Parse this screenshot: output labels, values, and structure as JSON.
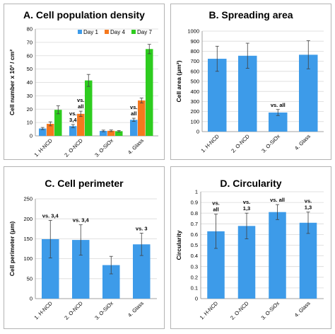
{
  "chart_data": [
    {
      "id": "A",
      "type": "bar",
      "title": "A. Cell population density",
      "ylabel": "Cell number x 10³ / cm²",
      "ylim": [
        0,
        80
      ],
      "yticks": [
        0,
        10,
        20,
        30,
        40,
        50,
        60,
        70,
        80
      ],
      "categories": [
        "1. H-NCD",
        "2. O-NCD",
        "3. O-SiOx",
        "4. Glass"
      ],
      "legend_position": "top-right",
      "series": [
        {
          "name": "Day 1",
          "color": "#3d9be9",
          "values": [
            5.5,
            7.3,
            3.7,
            12.0
          ],
          "errors": [
            0.8,
            1.2,
            0.6,
            1.2
          ]
        },
        {
          "name": "Day 4",
          "color": "#f5781e",
          "values": [
            9.0,
            16.5,
            3.8,
            26.5
          ],
          "errors": [
            1.5,
            2.0,
            0.6,
            1.8
          ]
        },
        {
          "name": "Day 7",
          "color": "#2ecc1f",
          "values": [
            19.5,
            41.5,
            3.5,
            65.0
          ],
          "errors": [
            3.0,
            4.5,
            0.5,
            3.5
          ]
        }
      ],
      "annotations": [
        {
          "category": 1,
          "series": 0,
          "lines": [
            "vs.",
            "3,4"
          ]
        },
        {
          "category": 1,
          "series": 1,
          "lines": [
            "vs.",
            "all"
          ]
        },
        {
          "category": 3,
          "series": 0,
          "lines": [
            "vs.",
            "all"
          ]
        }
      ]
    },
    {
      "id": "B",
      "type": "bar",
      "title": "B. Spreading area",
      "ylabel": "Cell area (μm²)",
      "ylim": [
        0,
        1000
      ],
      "yticks": [
        0,
        100,
        200,
        300,
        400,
        500,
        600,
        700,
        800,
        900,
        1000
      ],
      "categories": [
        "1. H-NCD",
        "2. O-NCD",
        "3. O-SiOx",
        "4. Glass"
      ],
      "series": [
        {
          "color": "#3d9be9",
          "values": [
            725,
            755,
            190,
            765
          ],
          "errors": [
            125,
            125,
            30,
            140
          ]
        }
      ],
      "annotations": [
        {
          "category": 2,
          "series": 0,
          "lines": [
            "vs. all"
          ]
        }
      ]
    },
    {
      "id": "C",
      "type": "bar",
      "title": "C. Cell perimeter",
      "ylabel": "Cell perimeter (μm)",
      "ylim": [
        0,
        250
      ],
      "yticks": [
        0,
        50,
        100,
        150,
        200,
        250
      ],
      "categories": [
        "1. H-NCD",
        "2. O-NCD",
        "3. O-SiOx",
        "4. Glass"
      ],
      "series": [
        {
          "color": "#3d9be9",
          "values": [
            149,
            147,
            84,
            136
          ],
          "errors": [
            47,
            38,
            22,
            28
          ]
        }
      ],
      "annotations": [
        {
          "category": 0,
          "series": 0,
          "lines": [
            "vs. 3,4"
          ]
        },
        {
          "category": 1,
          "series": 0,
          "lines": [
            "vs. 3,4"
          ]
        },
        {
          "category": 3,
          "series": 0,
          "lines": [
            "vs. 3"
          ]
        }
      ]
    },
    {
      "id": "D",
      "type": "bar",
      "title": "D. Circularity",
      "ylabel": "Circularity",
      "ylim": [
        0,
        1
      ],
      "yticks": [
        0,
        0.1,
        0.2,
        0.3,
        0.4,
        0.5,
        0.6,
        0.7,
        0.8,
        0.9,
        1
      ],
      "categories": [
        "1. H-NCD",
        "2. O-NCD",
        "3. O-SiOx",
        "4. Glass"
      ],
      "series": [
        {
          "color": "#3d9be9",
          "values": [
            0.63,
            0.68,
            0.81,
            0.71
          ],
          "errors": [
            0.16,
            0.12,
            0.07,
            0.1
          ]
        }
      ],
      "annotations": [
        {
          "category": 0,
          "series": 0,
          "lines": [
            "vs.",
            "all"
          ]
        },
        {
          "category": 1,
          "series": 0,
          "lines": [
            "vs.",
            "1,3"
          ]
        },
        {
          "category": 2,
          "series": 0,
          "lines": [
            "vs. all"
          ]
        },
        {
          "category": 3,
          "series": 0,
          "lines": [
            "vs.",
            "1,3"
          ]
        }
      ]
    }
  ]
}
